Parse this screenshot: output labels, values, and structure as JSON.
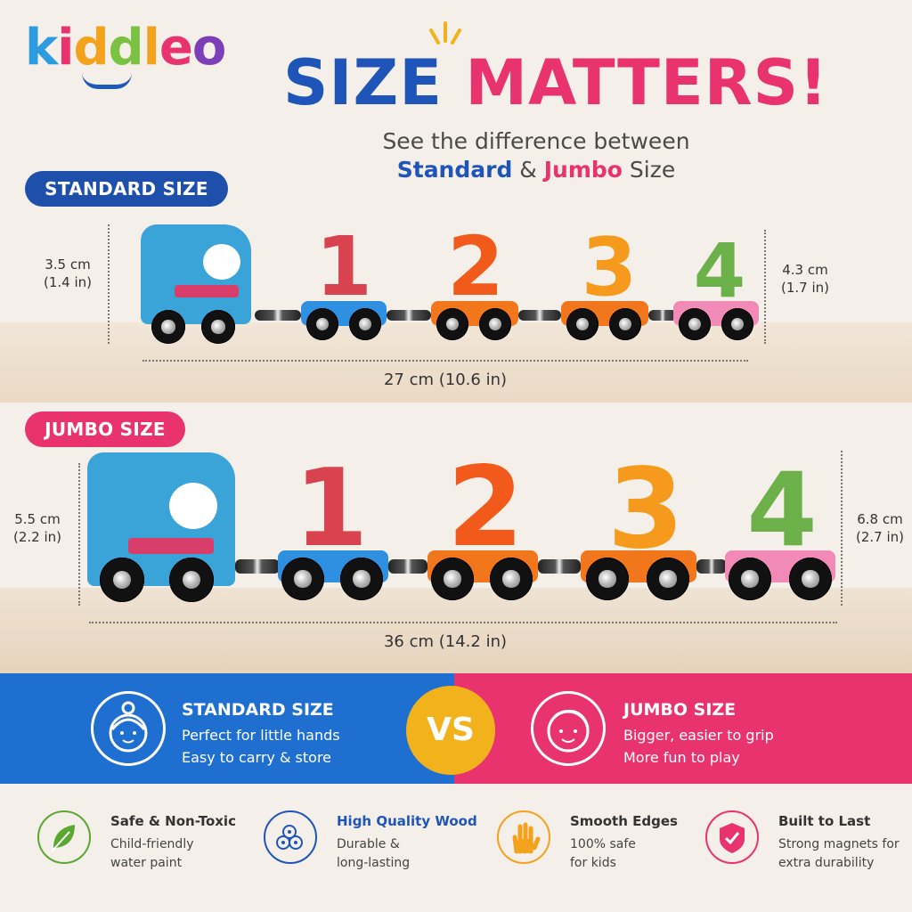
{
  "brand": {
    "letters": [
      "k",
      "i",
      "d",
      "d",
      "l",
      "e",
      "o"
    ],
    "letter_colors": [
      "#2c9be0",
      "#e8336f",
      "#f2a21c",
      "#7cc242",
      "#f2a21c",
      "#e8336f",
      "#7c3fb8"
    ]
  },
  "headline": {
    "part1": "SIZE",
    "part2": "MATTERS!"
  },
  "subtitle": {
    "line1": "See the difference between",
    "standard": "Standard",
    "amp": " & ",
    "jumbo": "Jumbo",
    "size": " Size"
  },
  "standard": {
    "label": "STANDARD SIZE",
    "left_height_cm": "3.5 cm",
    "left_height_in": "(1.4 in)",
    "right_height_cm": "4.3 cm",
    "right_height_in": "(1.7 in)",
    "length": "27 cm (10.6 in)"
  },
  "jumbo": {
    "label": "JUMBO SIZE",
    "left_height_cm": "5.5 cm",
    "left_height_in": "(2.2 in)",
    "right_height_cm": "6.8 cm",
    "right_height_in": "(2.7 in)",
    "length": "36 cm (14.2 in)"
  },
  "digits": [
    "1",
    "2",
    "3",
    "4"
  ],
  "comparison": {
    "vs": "VS",
    "standard": {
      "title": "STANDARD SIZE",
      "line1": "Perfect for little hands",
      "line2": "Easy to carry & store"
    },
    "jumbo": {
      "title": "JUMBO SIZE",
      "line1": "Bigger, easier to grip",
      "line2": "More fun to play"
    }
  },
  "features": [
    {
      "title": "Safe & Non-Toxic",
      "line1": "Child-friendly",
      "line2": "water paint",
      "icon": "leaf-icon",
      "color": "#5aa832"
    },
    {
      "title": "High Quality Wood",
      "line1": "Durable &",
      "line2": "long-lasting",
      "icon": "wood-logs-icon",
      "color": "#1f55b8"
    },
    {
      "title": "Smooth Edges",
      "line1": "100% safe",
      "line2": "for kids",
      "icon": "hand-icon",
      "color": "#f2a21c"
    },
    {
      "title": "Built to Last",
      "line1": "Strong magnets for",
      "line2": "extra durability",
      "icon": "shield-check-icon",
      "color": "#e8336f"
    }
  ],
  "colors": {
    "blue": "#1f55b8",
    "pink": "#e8336f",
    "orange": "#f28a1c",
    "yellow": "#f2b21c",
    "car_blue": "#2f8fe0",
    "car_orange": "#f2761c",
    "car_pink": "#f28ab8",
    "digit1": "#d9434f",
    "digit2": "#f25a1c",
    "digit3": "#f59a1c",
    "digit4": "#6cb04a"
  }
}
